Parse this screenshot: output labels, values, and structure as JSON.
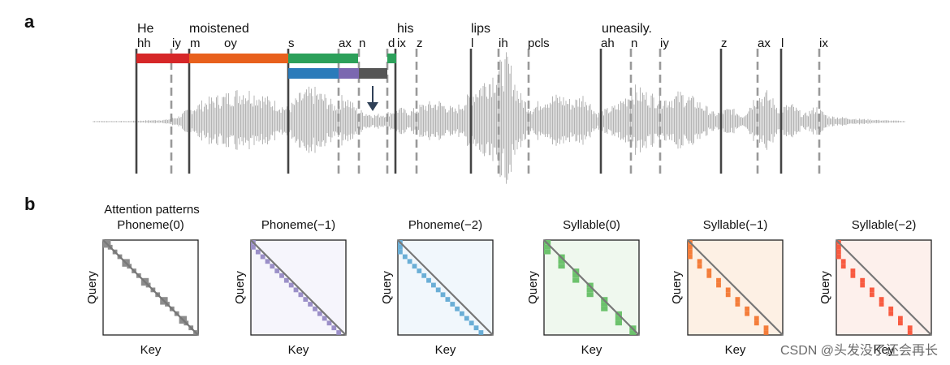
{
  "panel_a": {
    "label": "a",
    "words": [
      "He",
      "moistened",
      "his",
      "lips",
      "uneasily."
    ],
    "phonemes": [
      "hh",
      "iy",
      "m",
      "oy",
      "s",
      "ax",
      "n",
      "d",
      "ix",
      "z",
      "l",
      "ih",
      "pcls",
      "ah",
      "n",
      "iy",
      "z",
      "ax",
      "l",
      "ix"
    ],
    "bar_colors": {
      "red": "#d62728",
      "orange": "#e8601c",
      "green": "#2ca05a",
      "blue": "#2b7bba",
      "purple": "#7b68b0",
      "gray": "#555555",
      "arrow": "#2f4057",
      "waveform": "#b4b4b4"
    }
  },
  "panel_b": {
    "label": "b",
    "super_title": "Attention patterns",
    "panels": [
      {
        "title": "Phoneme(0)",
        "color": "#8c8c8c",
        "bg": "#ffffff",
        "ylabel": "Query",
        "xlabel": "Key"
      },
      {
        "title": "Phoneme(−1)",
        "color": "#9b8fc8",
        "bg": "#f6f5fc",
        "ylabel": "Query",
        "xlabel": "Key"
      },
      {
        "title": "Phoneme(−2)",
        "color": "#6aaed6",
        "bg": "#f1f7fc",
        "ylabel": "Query",
        "xlabel": "Key"
      },
      {
        "title": "Syllable(0)",
        "color": "#6cc26c",
        "bg": "#eff8ee",
        "ylabel": "Query",
        "xlabel": "Key"
      },
      {
        "title": "Syllable(−1)",
        "color": "#f47d3a",
        "bg": "#fdf0e4",
        "ylabel": "Query",
        "xlabel": "Key"
      },
      {
        "title": "Syllable(−2)",
        "color": "#f85b41",
        "bg": "#fdf0ec",
        "ylabel": "Query",
        "xlabel": "Key"
      }
    ]
  },
  "watermark": "CSDN @头发没了还会再长"
}
